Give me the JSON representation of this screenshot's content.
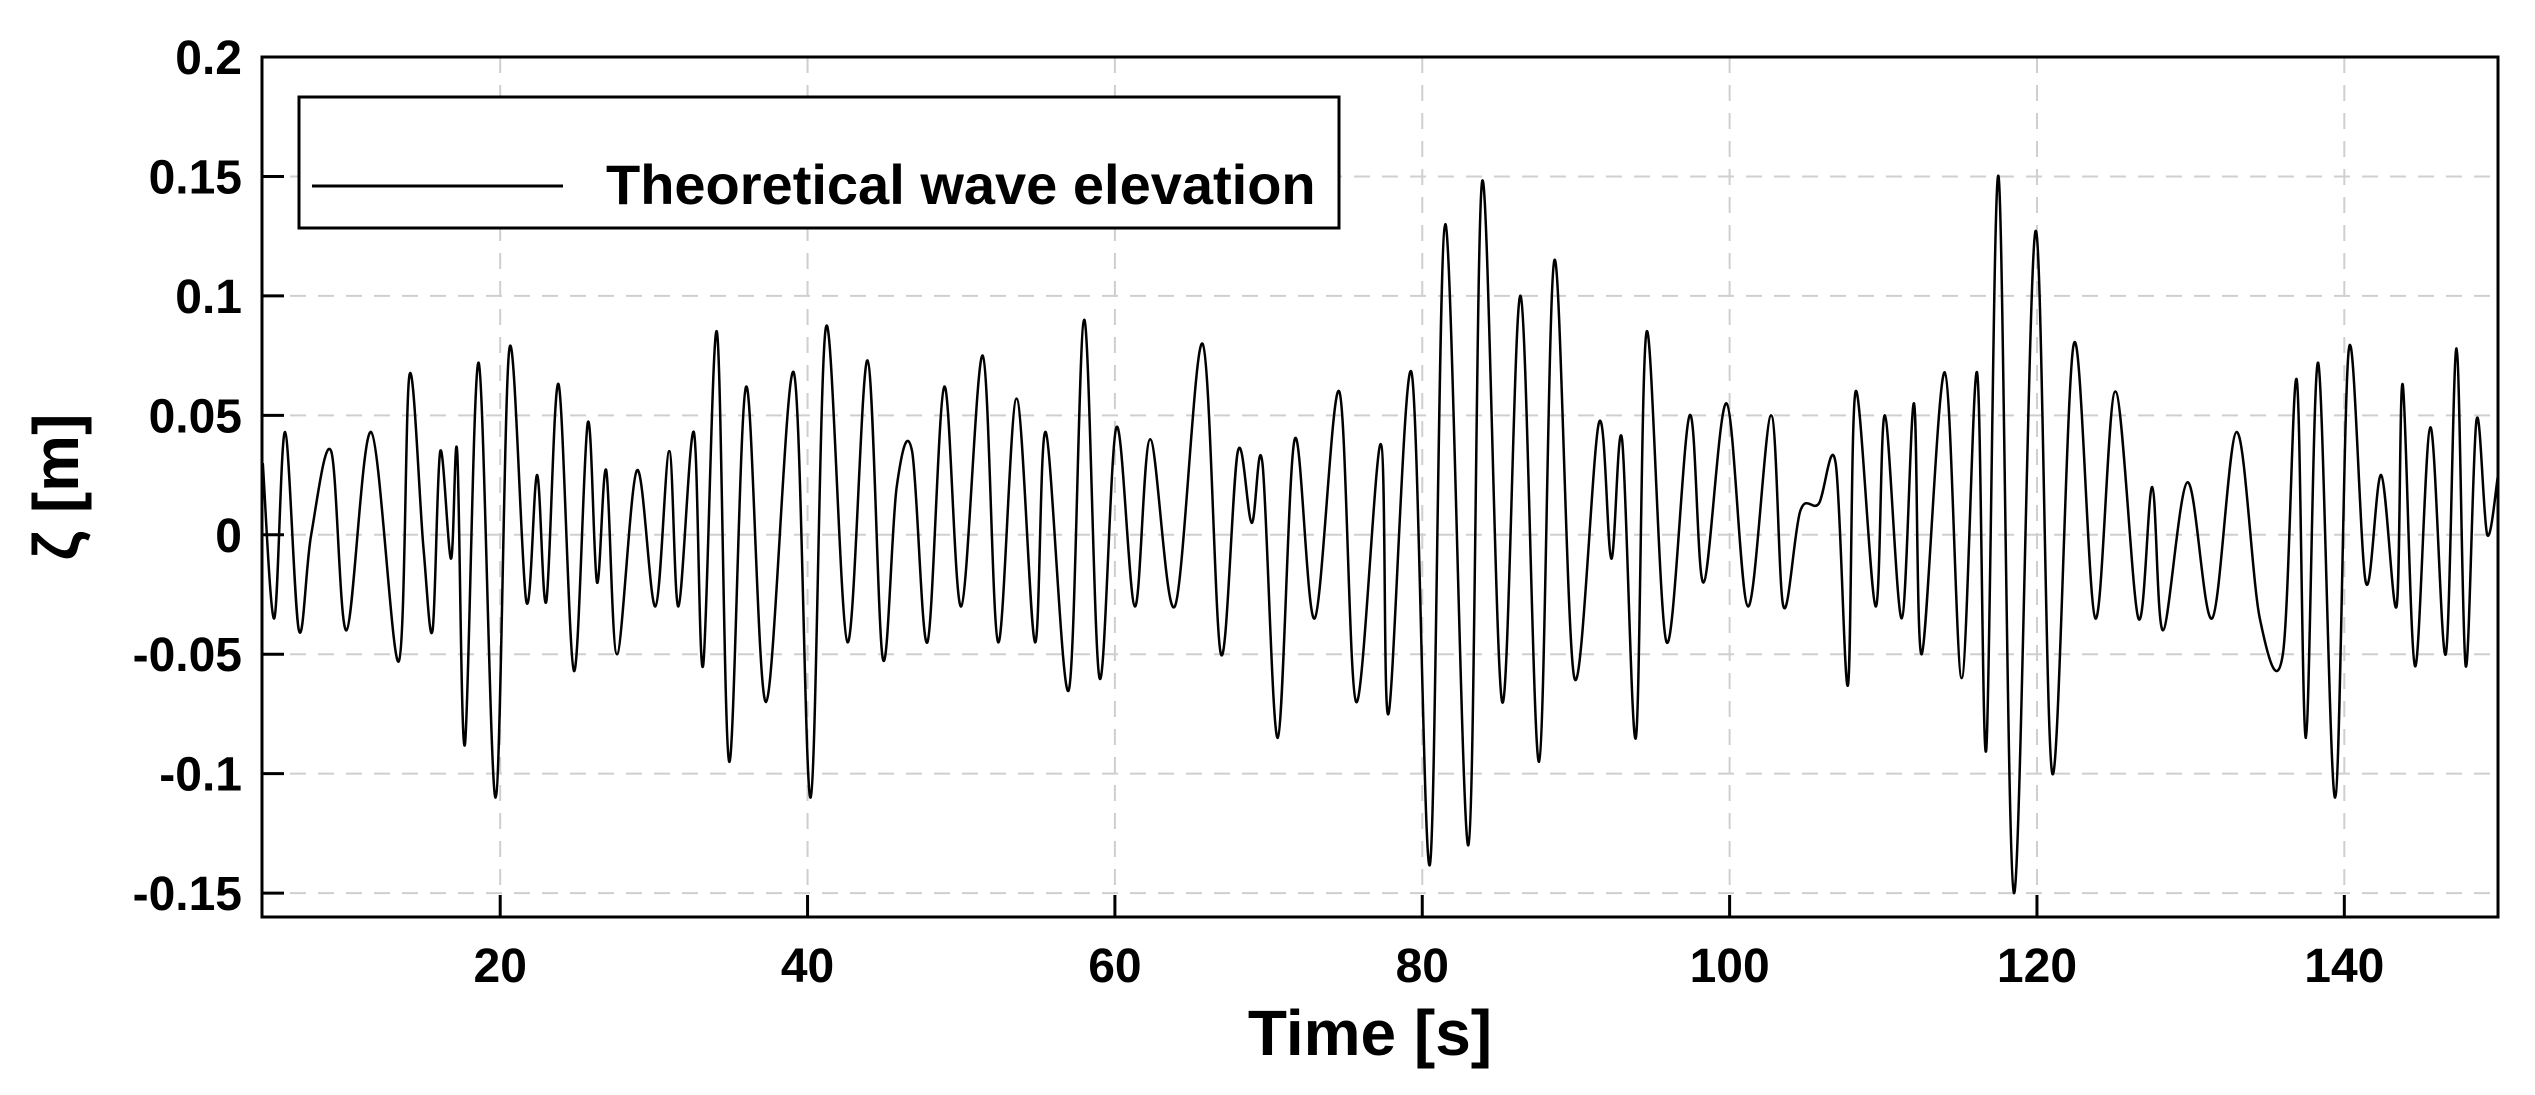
{
  "chart_data": {
    "type": "line",
    "x_label": "Time [s]",
    "y_label": "ζ [m]",
    "xlim": [
      4.5,
      150
    ],
    "ylim": [
      -0.16,
      0.2
    ],
    "xticks": [
      20,
      40,
      60,
      80,
      100,
      120,
      140
    ],
    "yticks": [
      0.2,
      0.15,
      0.1,
      0.05,
      0,
      -0.05,
      -0.1,
      -0.15
    ],
    "grid": true,
    "legend": "upper left",
    "x": [
      4.55,
      5.3,
      6,
      6.9,
      7.7,
      9,
      10,
      11.6,
      13.4,
      14.1,
      15,
      15.6,
      16.1,
      16.8,
      17.2,
      17.7,
      18.6,
      19.7,
      20.6,
      21.7,
      22.4,
      23,
      23.8,
      24.8,
      25.7,
      26.3,
      26.9,
      27.6,
      28.9,
      30.1,
      31,
      31.6,
      32.6,
      33.2,
      34.1,
      34.9,
      36,
      37.3,
      39.1,
      40.2,
      41.2,
      42.6,
      43.9,
      44.9,
      45.8,
      46.8,
      47.8,
      48.9,
      50,
      51.4,
      52.4,
      53.6,
      54.8,
      55.5,
      57,
      58,
      59,
      60.1,
      61.3,
      62.3,
      63.9,
      65.7,
      66.9,
      68,
      68.9,
      69.6,
      70.6,
      71.7,
      73,
      74.6,
      75.7,
      77.3,
      77.8,
      79.3,
      80.5,
      81.5,
      83,
      83.9,
      85.2,
      86.4,
      87.6,
      88.6,
      89.9,
      91.5,
      92.3,
      93,
      93.9,
      94.6,
      95.9,
      97.4,
      98.3,
      99.8,
      101.2,
      102.7,
      103.5,
      104.6,
      105.8,
      106.9,
      107.7,
      108.2,
      109.5,
      110.1,
      111.2,
      112,
      112.5,
      114,
      115.1,
      116.1,
      116.7,
      117.5,
      118.5,
      119.9,
      121,
      122.4,
      123.8,
      125.1,
      126.6,
      127.5,
      128.2,
      129.8,
      131.4,
      133,
      134.5,
      136,
      136.9,
      137.5,
      138.3,
      139.4,
      140.3,
      141.4,
      142.4,
      143.4,
      143.8,
      144.6,
      145.6,
      146.6,
      147.3,
      147.9,
      148.6,
      149.3,
      150
    ],
    "series": [
      {
        "name": "Theoretical wave elevation",
        "color": "#000000",
        "values": [
          0.03,
          -0.035,
          0.043,
          -0.04,
          0,
          0.035,
          -0.04,
          0.043,
          -0.053,
          0.067,
          -0.005,
          -0.04,
          0.035,
          -0.01,
          0.035,
          -0.088,
          0.072,
          -0.11,
          0.078,
          -0.028,
          0.025,
          -0.028,
          0.063,
          -0.057,
          0.047,
          -0.02,
          0.027,
          -0.05,
          0.027,
          -0.03,
          0.035,
          -0.03,
          0.043,
          -0.055,
          0.085,
          -0.095,
          0.062,
          -0.07,
          0.068,
          -0.11,
          0.087,
          -0.045,
          0.073,
          -0.052,
          0.02,
          0.035,
          -0.045,
          0.062,
          -0.03,
          0.075,
          -0.045,
          0.057,
          -0.045,
          0.043,
          -0.065,
          0.09,
          -0.06,
          0.045,
          -0.03,
          0.04,
          -0.03,
          0.08,
          -0.05,
          0.035,
          0.005,
          0.03,
          -0.085,
          0.04,
          -0.035,
          0.06,
          -0.07,
          0.038,
          -0.075,
          0.068,
          -0.138,
          0.13,
          -0.13,
          0.148,
          -0.07,
          0.1,
          -0.095,
          0.115,
          -0.06,
          0.047,
          -0.01,
          0.04,
          -0.085,
          0.085,
          -0.045,
          0.05,
          -0.02,
          0.055,
          -0.03,
          0.05,
          -0.03,
          0.01,
          0.013,
          0.03,
          -0.063,
          0.06,
          -0.03,
          0.05,
          -0.035,
          0.055,
          -0.05,
          0.068,
          -0.06,
          0.068,
          -0.09,
          0.15,
          -0.15,
          0.127,
          -0.1,
          0.08,
          -0.035,
          0.06,
          -0.035,
          0.02,
          -0.04,
          0.022,
          -0.035,
          0.043,
          -0.035,
          -0.05,
          0.065,
          -0.085,
          0.072,
          -0.11,
          0.078,
          -0.02,
          0.025,
          -0.03,
          0.063,
          -0.055,
          0.045,
          -0.05,
          0.078,
          -0.055,
          0.048,
          0,
          0.025
        ]
      }
    ]
  }
}
